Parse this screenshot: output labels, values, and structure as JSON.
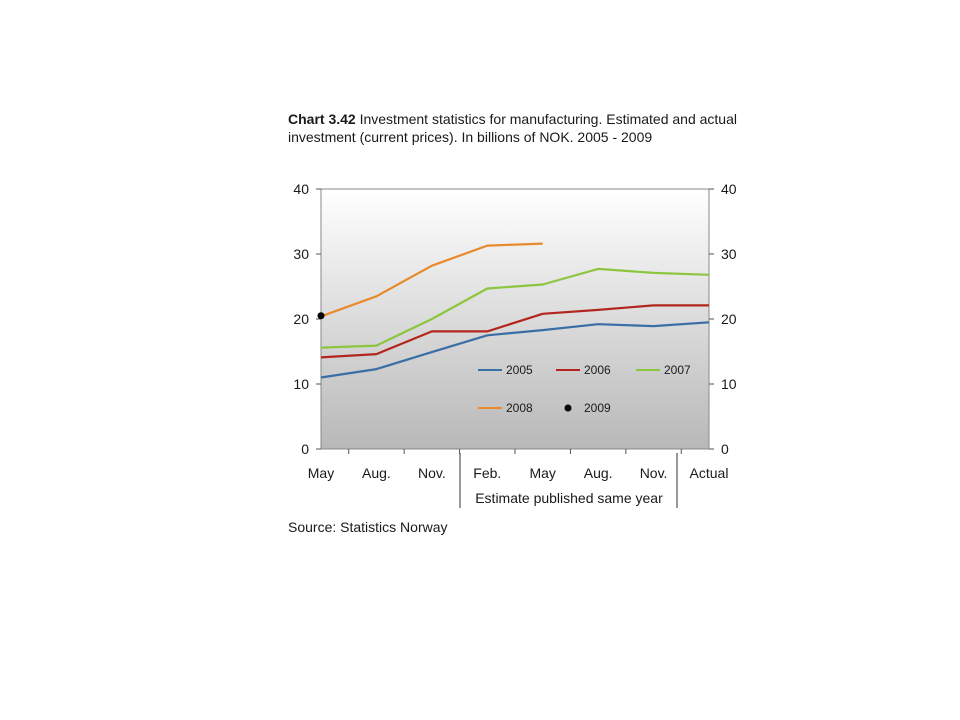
{
  "title_bold": "Chart 3.42",
  "title_rest": " Investment statistics for manufacturing. Estimated and actual investment (current prices). In billions of NOK. 2005 - 2009",
  "source": "Source: Statistics Norway",
  "note": "Estimate published same year",
  "colors": {
    "2005": "#3a6ea5",
    "2006": "#b3261e",
    "2007": "#8cc63f",
    "2008": "#e8892b",
    "2009": "#000000"
  },
  "chart_data": {
    "type": "line",
    "categories": [
      "May",
      "Aug.",
      "Nov.",
      "Feb.",
      "May",
      "Aug.",
      "Nov.",
      "Actual"
    ],
    "ylim": [
      0,
      40
    ],
    "yticks": [
      0,
      10,
      20,
      30,
      40
    ],
    "grid": false,
    "legend": [
      "2005",
      "2006",
      "2007",
      "2008",
      "2009"
    ],
    "series": [
      {
        "name": "2005",
        "values": [
          11.0,
          12.3,
          14.9,
          17.5,
          18.3,
          19.2,
          18.9,
          19.5
        ]
      },
      {
        "name": "2006",
        "values": [
          14.1,
          14.6,
          18.1,
          18.1,
          20.8,
          21.4,
          22.1,
          22.1
        ]
      },
      {
        "name": "2007",
        "values": [
          15.6,
          15.9,
          20.0,
          24.7,
          25.3,
          27.7,
          27.1,
          26.8
        ]
      },
      {
        "name": "2008",
        "values": [
          20.4,
          23.5,
          28.2,
          31.3,
          31.6,
          null,
          null,
          null
        ]
      },
      {
        "name": "2009",
        "values": [
          20.5,
          null,
          null,
          null,
          null,
          null,
          null,
          null
        ],
        "marker_only": true
      }
    ]
  }
}
